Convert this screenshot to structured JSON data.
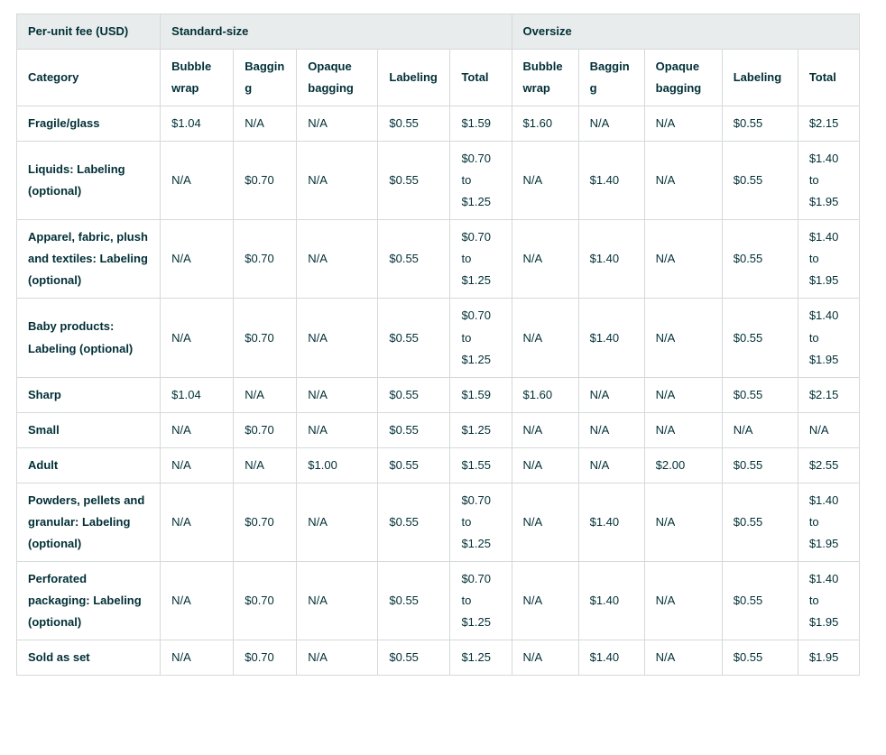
{
  "colors": {
    "header_band_bg": "#e9ecec",
    "border": "#d5d9d9",
    "text": "#002f36",
    "background": "#ffffff"
  },
  "table": {
    "corner_label": "Per-unit fee (USD)",
    "groups": [
      {
        "label": "Standard-size",
        "span": 5
      },
      {
        "label": "Oversize",
        "span": 5
      }
    ],
    "category_header": "Category",
    "sub_columns": [
      "Bubble wrap",
      "Bagging",
      "Opaque bagging",
      "Labeling",
      "Total"
    ],
    "rows": [
      {
        "category": "Fragile/glass",
        "standard": [
          "$1.04",
          "N/A",
          "N/A",
          "$0.55",
          "$1.59"
        ],
        "oversize": [
          "$1.60",
          "N/A",
          "N/A",
          "$0.55",
          "$2.15"
        ]
      },
      {
        "category": "Liquids: Labeling (optional)",
        "standard": [
          "N/A",
          "$0.70",
          "N/A",
          "$0.55",
          "$0.70 to $1.25"
        ],
        "oversize": [
          "N/A",
          "$1.40",
          "N/A",
          "$0.55",
          "$1.40 to $1.95"
        ]
      },
      {
        "category": "Apparel, fabric, plush and textiles: Labeling (optional)",
        "standard": [
          "N/A",
          "$0.70",
          "N/A",
          "$0.55",
          "$0.70 to $1.25"
        ],
        "oversize": [
          "N/A",
          "$1.40",
          "N/A",
          "$0.55",
          "$1.40 to $1.95"
        ]
      },
      {
        "category": "Baby products: Labeling (optional)",
        "standard": [
          "N/A",
          "$0.70",
          "N/A",
          "$0.55",
          "$0.70 to $1.25"
        ],
        "oversize": [
          "N/A",
          "$1.40",
          "N/A",
          "$0.55",
          "$1.40 to $1.95"
        ]
      },
      {
        "category": "Sharp",
        "standard": [
          "$1.04",
          "N/A",
          "N/A",
          "$0.55",
          "$1.59"
        ],
        "oversize": [
          "$1.60",
          "N/A",
          "N/A",
          "$0.55",
          "$2.15"
        ]
      },
      {
        "category": "Small",
        "standard": [
          "N/A",
          "$0.70",
          "N/A",
          "$0.55",
          "$1.25"
        ],
        "oversize": [
          "N/A",
          "N/A",
          "N/A",
          "N/A",
          "N/A"
        ]
      },
      {
        "category": "Adult",
        "standard": [
          "N/A",
          "N/A",
          "$1.00",
          "$0.55",
          "$1.55"
        ],
        "oversize": [
          "N/A",
          "N/A",
          "$2.00",
          "$0.55",
          "$2.55"
        ]
      },
      {
        "category": "Powders, pellets and granular: Labeling (optional)",
        "standard": [
          "N/A",
          "$0.70",
          "N/A",
          "$0.55",
          "$0.70 to $1.25"
        ],
        "oversize": [
          "N/A",
          "$1.40",
          "N/A",
          "$0.55",
          "$1.40 to $1.95"
        ]
      },
      {
        "category": "Perforated packaging: Labeling (optional)",
        "standard": [
          "N/A",
          "$0.70",
          "N/A",
          "$0.55",
          "$0.70 to $1.25"
        ],
        "oversize": [
          "N/A",
          "$1.40",
          "N/A",
          "$0.55",
          "$1.40 to $1.95"
        ]
      },
      {
        "category": "Sold as set",
        "standard": [
          "N/A",
          "$0.70",
          "N/A",
          "$0.55",
          "$1.25"
        ],
        "oversize": [
          "N/A",
          "$1.40",
          "N/A",
          "$0.55",
          "$1.95"
        ]
      }
    ]
  }
}
